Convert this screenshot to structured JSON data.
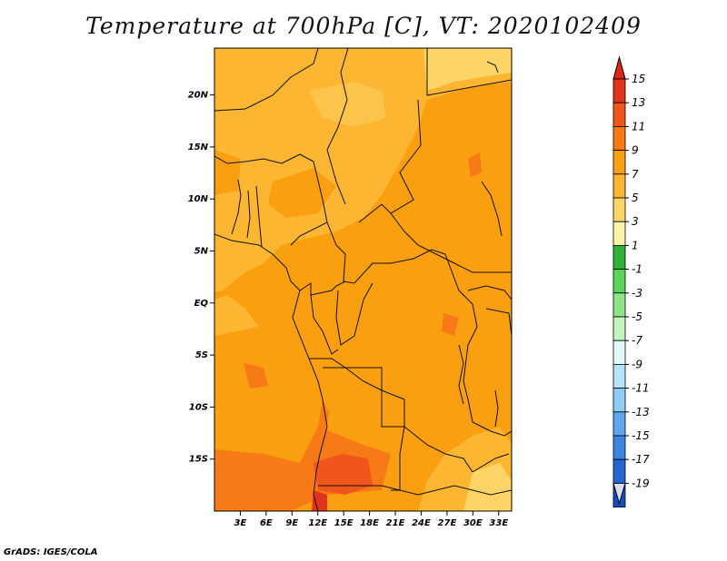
{
  "title": "Temperature at 700hPa [C], VT: 2020102409",
  "credit": "GrADS: IGES/COLA",
  "map": {
    "lon_range": [
      0,
      34.5
    ],
    "lat_range": [
      -20,
      24.5
    ],
    "lon_ticks": [
      {
        "value": 3,
        "label": "3E"
      },
      {
        "value": 6,
        "label": "6E"
      },
      {
        "value": 9,
        "label": "9E"
      },
      {
        "value": 12,
        "label": "12E"
      },
      {
        "value": 15,
        "label": "15E"
      },
      {
        "value": 18,
        "label": "18E"
      },
      {
        "value": 21,
        "label": "21E"
      },
      {
        "value": 24,
        "label": "24E"
      },
      {
        "value": 27,
        "label": "27E"
      },
      {
        "value": 30,
        "label": "30E"
      },
      {
        "value": 33,
        "label": "33E"
      }
    ],
    "lat_ticks": [
      {
        "value": 20,
        "label": "20N"
      },
      {
        "value": 15,
        "label": "15N"
      },
      {
        "value": 10,
        "label": "10N"
      },
      {
        "value": 5,
        "label": "5N"
      },
      {
        "value": 0,
        "label": "EQ"
      },
      {
        "value": -5,
        "label": "5S"
      },
      {
        "value": -10,
        "label": "10S"
      },
      {
        "value": -15,
        "label": "15S"
      }
    ]
  },
  "colorbar": {
    "levels": [
      "15",
      "13",
      "11",
      "9",
      "7",
      "5",
      "3",
      "1",
      "-1",
      "-3",
      "-5",
      "-7",
      "-9",
      "-11",
      "-13",
      "-15",
      "-17",
      "-19"
    ],
    "colors": [
      "#e0341c",
      "#f0551c",
      "#f77a16",
      "#fa9f10",
      "#fcb632",
      "#fcd566",
      "#fcf2a8",
      "#2fb13a",
      "#5dd35a",
      "#8fe48a",
      "#c4f4bf",
      "#e2f8f8",
      "#b8e4fa",
      "#8fcdf7",
      "#5ea6ee",
      "#3c86e2",
      "#2366d2",
      "#144fc0",
      "#0f2aa0",
      "#0b1470",
      "#dcdcf4"
    ],
    "top_color": "#d92817",
    "bottom_color": "#dcdcf4"
  }
}
